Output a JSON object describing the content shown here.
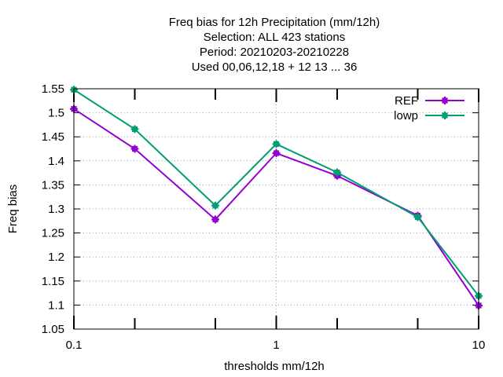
{
  "chart_data": {
    "type": "line",
    "title_lines": [
      "Freq bias  for 12h Precipitation (mm/12h)",
      "Selection: ALL     423 stations",
      "Period: 20210203-20210228",
      "Used  00,06,12,18  + 12 13 ... 36"
    ],
    "xlabel": "thresholds mm/12h",
    "ylabel": "Freq bias",
    "x_scale": "log",
    "xlim": [
      0.1,
      10
    ],
    "ylim": [
      1.05,
      1.55
    ],
    "grid": true,
    "legend_position": "top-right",
    "x_ticks": [
      {
        "value": 0.1,
        "label": "0.1"
      },
      {
        "value": 1,
        "label": "1"
      },
      {
        "value": 10,
        "label": "10"
      }
    ],
    "x_minor_ticks": [
      0.2,
      0.5,
      2,
      5
    ],
    "y_ticks": [
      {
        "value": 1.05,
        "label": "1.05"
      },
      {
        "value": 1.1,
        "label": "1.1"
      },
      {
        "value": 1.15,
        "label": "1.15"
      },
      {
        "value": 1.2,
        "label": "1.2"
      },
      {
        "value": 1.25,
        "label": "1.25"
      },
      {
        "value": 1.3,
        "label": "1.3"
      },
      {
        "value": 1.35,
        "label": "1.35"
      },
      {
        "value": 1.4,
        "label": "1.4"
      },
      {
        "value": 1.45,
        "label": "1.45"
      },
      {
        "value": 1.5,
        "label": "1.5"
      },
      {
        "value": 1.55,
        "label": "1.55"
      }
    ],
    "x": [
      0.1,
      0.2,
      0.5,
      1,
      2,
      5,
      10
    ],
    "series": [
      {
        "name": "REF",
        "color": "#9400d3",
        "values": [
          1.508,
          1.425,
          1.278,
          1.416,
          1.369,
          1.286,
          1.099
        ]
      },
      {
        "name": "lowp",
        "color": "#009e73",
        "values": [
          1.548,
          1.466,
          1.307,
          1.435,
          1.376,
          1.283,
          1.119
        ]
      }
    ]
  }
}
